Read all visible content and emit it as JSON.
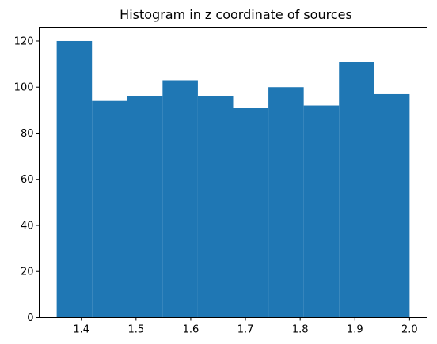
{
  "chart_data": {
    "type": "bar",
    "title": "Histogram in z coordinate of sources",
    "xlabel": "",
    "ylabel": "",
    "bin_edges": [
      1.355,
      1.4195,
      1.484,
      1.5485,
      1.613,
      1.6775,
      1.742,
      1.8065,
      1.871,
      1.9355,
      2.0
    ],
    "values": [
      120,
      94,
      96,
      103,
      96,
      91,
      100,
      92,
      111,
      97
    ],
    "xlim": [
      1.323,
      2.032
    ],
    "ylim": [
      0,
      126
    ],
    "x_ticks": [
      1.4,
      1.5,
      1.6,
      1.7,
      1.8,
      1.9,
      2.0
    ],
    "x_tick_labels": [
      "1.4",
      "1.5",
      "1.6",
      "1.7",
      "1.8",
      "1.9",
      "2.0"
    ],
    "y_ticks": [
      0,
      20,
      40,
      60,
      80,
      100,
      120
    ],
    "y_tick_labels": [
      "0",
      "20",
      "40",
      "60",
      "80",
      "100",
      "120"
    ],
    "bar_color": "#1f77b4",
    "grid": false,
    "legend": "none"
  }
}
